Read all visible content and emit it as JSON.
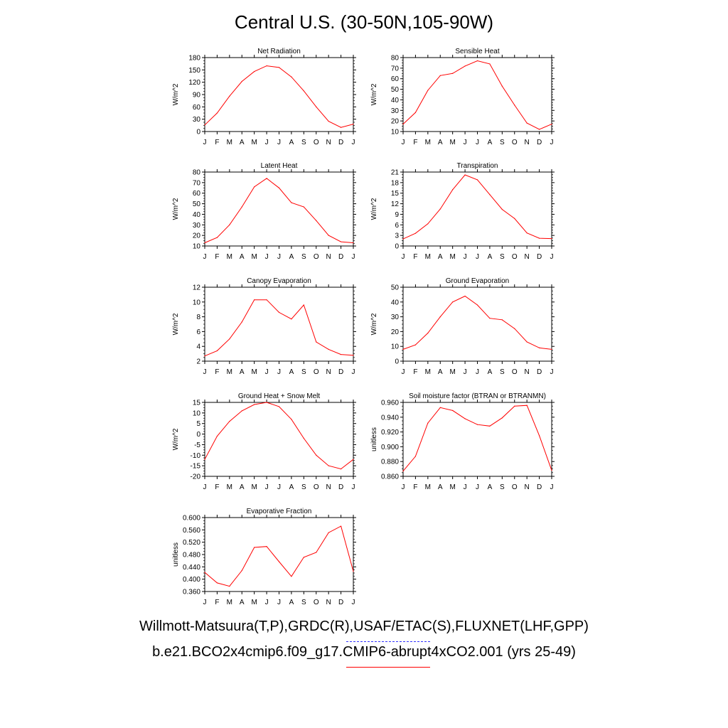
{
  "title": "Central U.S. (30-50N,105-90W)",
  "legend": {
    "observed": "Willmott-Matsuura(T,P),GRDC(R),USAF/ETAC(S),FLUXNET(LHF,GPP)",
    "model": "b.e21.BCO2x4cmip6.f09_g17.CMIP6-abrupt4xCO2.001 (yrs 25-49)"
  },
  "colors": {
    "model": "#ff0000",
    "observed": "#3333ff"
  },
  "chart_data": [
    {
      "type": "line",
      "title": "Net Radiation",
      "ylabel": "W/m^2",
      "categories": [
        "J",
        "F",
        "M",
        "A",
        "M",
        "J",
        "J",
        "A",
        "S",
        "O",
        "N",
        "D",
        "J"
      ],
      "ylim": [
        0,
        180
      ],
      "yticks": [
        "0",
        "30",
        "60",
        "90",
        "120",
        "150",
        "180"
      ],
      "values": [
        16,
        45,
        86,
        122,
        146,
        160,
        156,
        133,
        99,
        60,
        25,
        10,
        18
      ]
    },
    {
      "type": "line",
      "title": "Sensible Heat",
      "ylabel": "W/m^2",
      "categories": [
        "J",
        "F",
        "M",
        "A",
        "M",
        "J",
        "J",
        "A",
        "S",
        "O",
        "N",
        "D",
        "J"
      ],
      "ylim": [
        10,
        80
      ],
      "yticks": [
        "10",
        "20",
        "30",
        "40",
        "50",
        "60",
        "70",
        "80"
      ],
      "values": [
        17,
        28,
        49,
        63,
        65,
        72,
        77,
        74,
        53,
        35,
        18,
        12,
        17
      ]
    },
    {
      "type": "line",
      "title": "Latent Heat",
      "ylabel": "W/m^2",
      "categories": [
        "J",
        "F",
        "M",
        "A",
        "M",
        "J",
        "J",
        "A",
        "S",
        "O",
        "N",
        "D",
        "J"
      ],
      "ylim": [
        10,
        80
      ],
      "yticks": [
        "10",
        "20",
        "30",
        "40",
        "50",
        "60",
        "70",
        "80"
      ],
      "values": [
        13,
        18,
        30,
        47,
        66,
        74,
        65,
        51,
        47,
        34,
        20,
        14,
        13
      ]
    },
    {
      "type": "line",
      "title": "Transpiration",
      "ylabel": "W/m^2",
      "categories": [
        "J",
        "F",
        "M",
        "A",
        "M",
        "J",
        "J",
        "A",
        "S",
        "O",
        "N",
        "D",
        "J"
      ],
      "ylim": [
        0,
        21
      ],
      "yticks": [
        "0",
        "3",
        "6",
        "9",
        "12",
        "15",
        "18",
        "21"
      ],
      "values": [
        2,
        3.6,
        6.3,
        10.5,
        16,
        20.2,
        18.8,
        14.6,
        10.4,
        7.8,
        3.7,
        2.2,
        2.1
      ]
    },
    {
      "type": "line",
      "title": "Canopy Evaporation",
      "ylabel": "W/m^2",
      "categories": [
        "J",
        "F",
        "M",
        "A",
        "M",
        "J",
        "J",
        "A",
        "S",
        "O",
        "N",
        "D",
        "J"
      ],
      "ylim": [
        2,
        12
      ],
      "yticks": [
        "2",
        "4",
        "6",
        "8",
        "10",
        "12"
      ],
      "values": [
        2.7,
        3.4,
        5.0,
        7.3,
        10.3,
        10.3,
        8.6,
        7.7,
        9.6,
        4.6,
        3.6,
        2.9,
        2.8
      ]
    },
    {
      "type": "line",
      "title": "Ground Evaporation",
      "ylabel": "W/m^2",
      "categories": [
        "J",
        "F",
        "M",
        "A",
        "M",
        "J",
        "J",
        "A",
        "S",
        "O",
        "N",
        "D",
        "J"
      ],
      "ylim": [
        0,
        50
      ],
      "yticks": [
        "0",
        "10",
        "20",
        "30",
        "40",
        "50"
      ],
      "values": [
        8,
        11,
        19,
        30,
        40,
        44,
        38,
        29,
        28,
        22,
        13,
        9,
        8
      ]
    },
    {
      "type": "line",
      "title": "Ground Heat + Snow Melt",
      "ylabel": "W/m^2",
      "categories": [
        "J",
        "F",
        "M",
        "A",
        "M",
        "J",
        "J",
        "A",
        "S",
        "O",
        "N",
        "D",
        "J"
      ],
      "ylim": [
        -20,
        15
      ],
      "yticks": [
        "-20",
        "-15",
        "-10",
        "-5",
        "0",
        "5",
        "10",
        "15"
      ],
      "values": [
        -12,
        -1,
        6,
        11,
        14,
        15,
        13,
        7,
        -2,
        -10,
        -15,
        -16.5,
        -12
      ]
    },
    {
      "type": "line",
      "title": "Soil moisture factor (BTRAN or BTRANMN)",
      "ylabel": "unitless",
      "categories": [
        "J",
        "F",
        "M",
        "A",
        "M",
        "J",
        "J",
        "A",
        "S",
        "O",
        "N",
        "D",
        "J"
      ],
      "ylim": [
        0.86,
        0.96
      ],
      "yticks": [
        "0.860",
        "0.880",
        "0.900",
        "0.920",
        "0.940",
        "0.960"
      ],
      "values": [
        0.867,
        0.887,
        0.932,
        0.953,
        0.949,
        0.938,
        0.93,
        0.928,
        0.939,
        0.955,
        0.956,
        0.915,
        0.868
      ]
    },
    {
      "type": "line",
      "title": "Evaporative Fraction",
      "ylabel": "unitless",
      "categories": [
        "J",
        "F",
        "M",
        "A",
        "M",
        "J",
        "J",
        "A",
        "S",
        "O",
        "N",
        "D",
        "J"
      ],
      "ylim": [
        0.36,
        0.6
      ],
      "yticks": [
        "0.360",
        "0.400",
        "0.440",
        "0.480",
        "0.520",
        "0.560",
        "0.600"
      ],
      "values": [
        0.422,
        0.388,
        0.377,
        0.428,
        0.503,
        0.506,
        0.457,
        0.409,
        0.471,
        0.487,
        0.551,
        0.572,
        0.425
      ]
    }
  ]
}
